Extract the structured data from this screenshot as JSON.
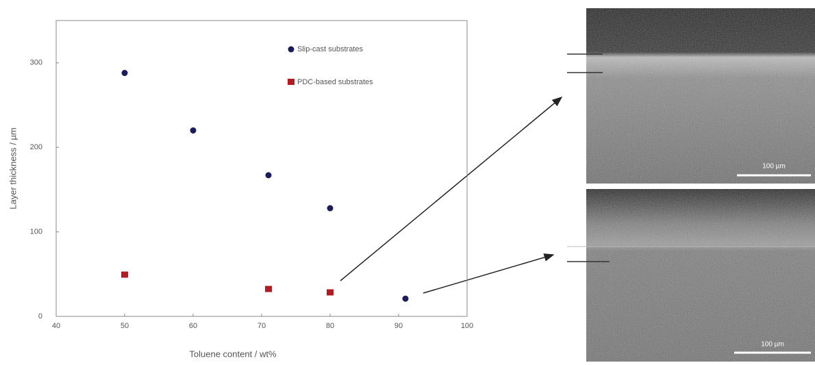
{
  "chart_data": {
    "type": "scatter",
    "xlabel": "Toluene content / wt%",
    "ylabel": "Layer thickness / µm",
    "xlim": [
      40,
      100
    ],
    "xticks": [
      40,
      50,
      60,
      70,
      80,
      90,
      100
    ],
    "ylim": [
      0,
      350
    ],
    "yticks": [
      0,
      100,
      200,
      300
    ],
    "series": [
      {
        "name": "Slip-cast substrates",
        "color": "#1c1c5a",
        "marker": "circle",
        "x": [
          50,
          60,
          71,
          80,
          91
        ],
        "values": [
          288,
          220,
          167,
          128,
          21
        ]
      },
      {
        "name": "PDC-based substrates",
        "color": "#b01c22",
        "marker": "square",
        "x": [
          50,
          71,
          80
        ],
        "values": [
          49,
          32,
          28
        ]
      }
    ],
    "legend": "upper right"
  },
  "images": [
    {
      "scale_bar": "100 µm"
    },
    {
      "scale_bar": "100 µm"
    }
  ]
}
